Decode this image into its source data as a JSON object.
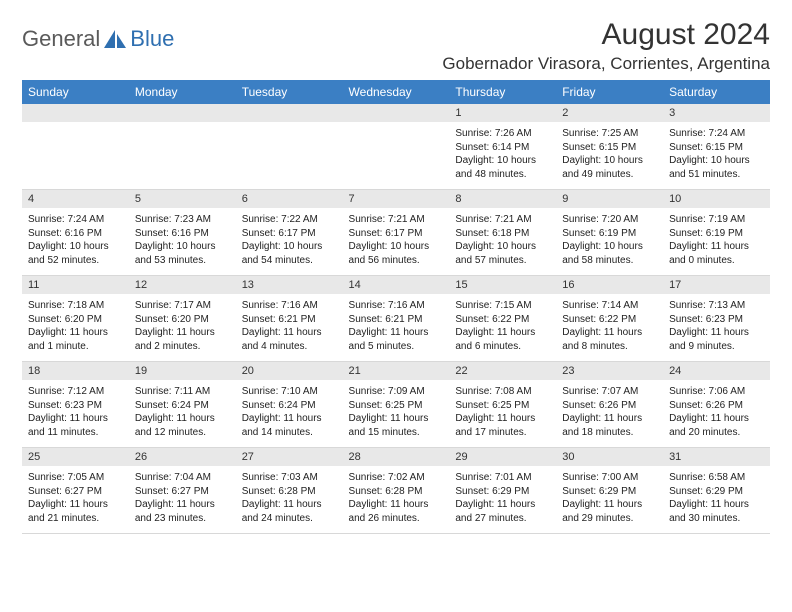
{
  "logo": {
    "general": "General",
    "blue": "Blue"
  },
  "title": "August 2024",
  "location": "Gobernador Virasora, Corrientes, Argentina",
  "colors": {
    "header_bg": "#3b7fc4",
    "header_fg": "#ffffff",
    "daynum_bg": "#e8e8e8",
    "logo_blue": "#2f6fb0",
    "logo_gray": "#5a5a5a"
  },
  "weekdays": [
    "Sunday",
    "Monday",
    "Tuesday",
    "Wednesday",
    "Thursday",
    "Friday",
    "Saturday"
  ],
  "weeks": [
    [
      null,
      null,
      null,
      null,
      {
        "n": "1",
        "r": "7:26 AM",
        "s": "6:14 PM",
        "d": "10 hours and 48 minutes."
      },
      {
        "n": "2",
        "r": "7:25 AM",
        "s": "6:15 PM",
        "d": "10 hours and 49 minutes."
      },
      {
        "n": "3",
        "r": "7:24 AM",
        "s": "6:15 PM",
        "d": "10 hours and 51 minutes."
      }
    ],
    [
      {
        "n": "4",
        "r": "7:24 AM",
        "s": "6:16 PM",
        "d": "10 hours and 52 minutes."
      },
      {
        "n": "5",
        "r": "7:23 AM",
        "s": "6:16 PM",
        "d": "10 hours and 53 minutes."
      },
      {
        "n": "6",
        "r": "7:22 AM",
        "s": "6:17 PM",
        "d": "10 hours and 54 minutes."
      },
      {
        "n": "7",
        "r": "7:21 AM",
        "s": "6:17 PM",
        "d": "10 hours and 56 minutes."
      },
      {
        "n": "8",
        "r": "7:21 AM",
        "s": "6:18 PM",
        "d": "10 hours and 57 minutes."
      },
      {
        "n": "9",
        "r": "7:20 AM",
        "s": "6:19 PM",
        "d": "10 hours and 58 minutes."
      },
      {
        "n": "10",
        "r": "7:19 AM",
        "s": "6:19 PM",
        "d": "11 hours and 0 minutes."
      }
    ],
    [
      {
        "n": "11",
        "r": "7:18 AM",
        "s": "6:20 PM",
        "d": "11 hours and 1 minute."
      },
      {
        "n": "12",
        "r": "7:17 AM",
        "s": "6:20 PM",
        "d": "11 hours and 2 minutes."
      },
      {
        "n": "13",
        "r": "7:16 AM",
        "s": "6:21 PM",
        "d": "11 hours and 4 minutes."
      },
      {
        "n": "14",
        "r": "7:16 AM",
        "s": "6:21 PM",
        "d": "11 hours and 5 minutes."
      },
      {
        "n": "15",
        "r": "7:15 AM",
        "s": "6:22 PM",
        "d": "11 hours and 6 minutes."
      },
      {
        "n": "16",
        "r": "7:14 AM",
        "s": "6:22 PM",
        "d": "11 hours and 8 minutes."
      },
      {
        "n": "17",
        "r": "7:13 AM",
        "s": "6:23 PM",
        "d": "11 hours and 9 minutes."
      }
    ],
    [
      {
        "n": "18",
        "r": "7:12 AM",
        "s": "6:23 PM",
        "d": "11 hours and 11 minutes."
      },
      {
        "n": "19",
        "r": "7:11 AM",
        "s": "6:24 PM",
        "d": "11 hours and 12 minutes."
      },
      {
        "n": "20",
        "r": "7:10 AM",
        "s": "6:24 PM",
        "d": "11 hours and 14 minutes."
      },
      {
        "n": "21",
        "r": "7:09 AM",
        "s": "6:25 PM",
        "d": "11 hours and 15 minutes."
      },
      {
        "n": "22",
        "r": "7:08 AM",
        "s": "6:25 PM",
        "d": "11 hours and 17 minutes."
      },
      {
        "n": "23",
        "r": "7:07 AM",
        "s": "6:26 PM",
        "d": "11 hours and 18 minutes."
      },
      {
        "n": "24",
        "r": "7:06 AM",
        "s": "6:26 PM",
        "d": "11 hours and 20 minutes."
      }
    ],
    [
      {
        "n": "25",
        "r": "7:05 AM",
        "s": "6:27 PM",
        "d": "11 hours and 21 minutes."
      },
      {
        "n": "26",
        "r": "7:04 AM",
        "s": "6:27 PM",
        "d": "11 hours and 23 minutes."
      },
      {
        "n": "27",
        "r": "7:03 AM",
        "s": "6:28 PM",
        "d": "11 hours and 24 minutes."
      },
      {
        "n": "28",
        "r": "7:02 AM",
        "s": "6:28 PM",
        "d": "11 hours and 26 minutes."
      },
      {
        "n": "29",
        "r": "7:01 AM",
        "s": "6:29 PM",
        "d": "11 hours and 27 minutes."
      },
      {
        "n": "30",
        "r": "7:00 AM",
        "s": "6:29 PM",
        "d": "11 hours and 29 minutes."
      },
      {
        "n": "31",
        "r": "6:58 AM",
        "s": "6:29 PM",
        "d": "11 hours and 30 minutes."
      }
    ]
  ],
  "labels": {
    "sunrise": "Sunrise:",
    "sunset": "Sunset:",
    "daylight": "Daylight:"
  }
}
